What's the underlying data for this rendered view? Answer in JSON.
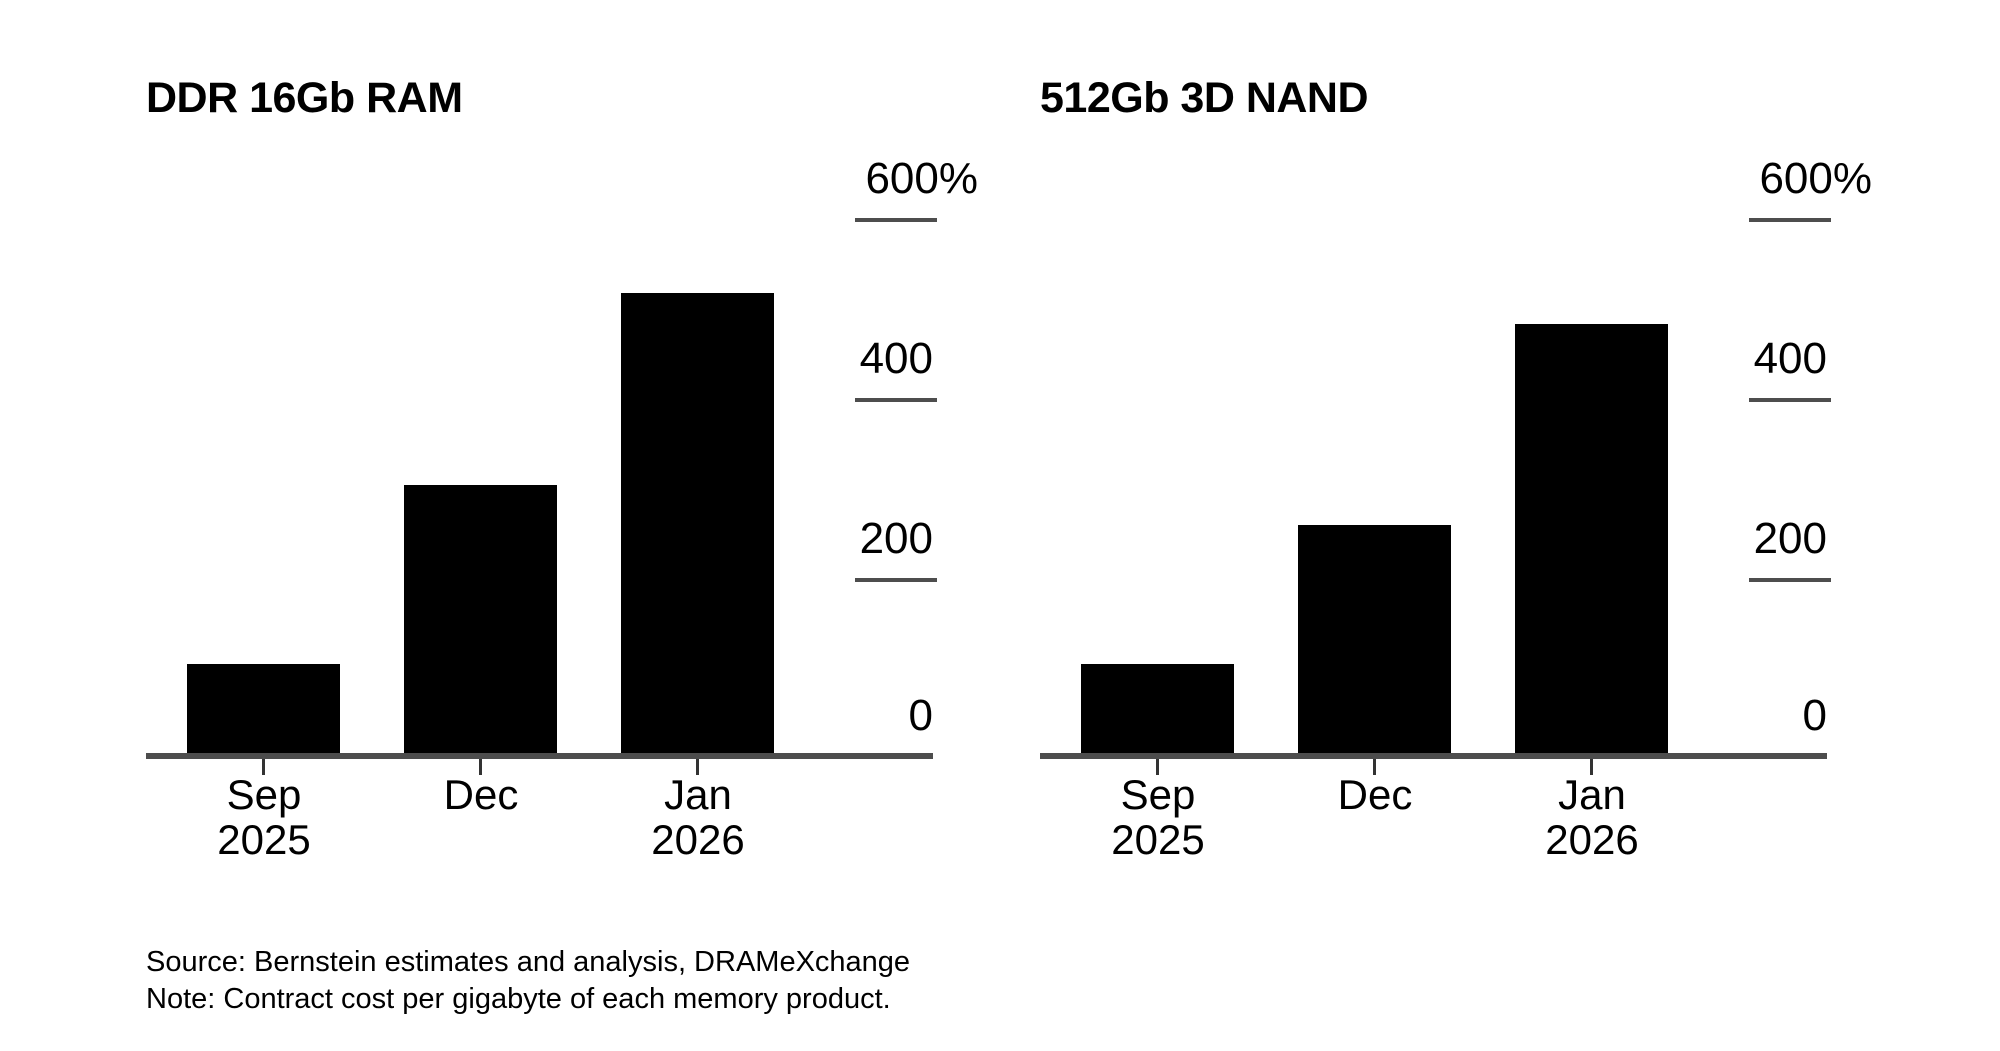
{
  "page": {
    "background": "#ffffff",
    "bar_color": "#000000",
    "axis_color": "#4d4d4d",
    "text_color": "#000000"
  },
  "chart_data": [
    {
      "type": "bar",
      "title": "DDR 16Gb RAM",
      "categories": [
        "Sep 2025",
        "Dec",
        "Jan 2026"
      ],
      "category_lines": [
        [
          "Sep",
          "2025"
        ],
        [
          "Dec"
        ],
        [
          "Jan",
          "2026"
        ]
      ],
      "values": [
        100,
        300,
        515
      ],
      "unit": "%",
      "xlabel": "",
      "ylabel": "",
      "ylim": [
        0,
        600
      ],
      "yticks": [
        0,
        200,
        400,
        600
      ],
      "ytick_labels": {
        "t600": "600%",
        "t400": "400",
        "t200": "200",
        "t0": "0"
      },
      "grid": false,
      "legend_position": "none",
      "yaxis_side": "right",
      "bar_color": "#000000"
    },
    {
      "type": "bar",
      "title": "512Gb 3D NAND",
      "categories": [
        "Sep 2025",
        "Dec",
        "Jan 2026"
      ],
      "category_lines": [
        [
          "Sep",
          "2025"
        ],
        [
          "Dec"
        ],
        [
          "Jan",
          "2026"
        ]
      ],
      "values": [
        100,
        255,
        480
      ],
      "unit": "%",
      "xlabel": "",
      "ylabel": "",
      "ylim": [
        0,
        600
      ],
      "yticks": [
        0,
        200,
        400,
        600
      ],
      "ytick_labels": {
        "t600": "600%",
        "t400": "400",
        "t200": "200",
        "t0": "0"
      },
      "grid": false,
      "legend_position": "none",
      "yaxis_side": "right",
      "bar_color": "#000000"
    }
  ],
  "footer": {
    "source": "Source: Bernstein estimates and analysis, DRAMeXchange",
    "note": "Note: Contract cost per gigabyte of each memory product."
  }
}
